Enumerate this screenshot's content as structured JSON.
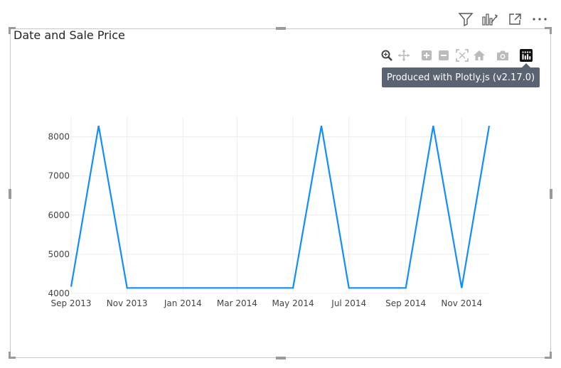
{
  "visual": {
    "header_icons": [
      "filter-icon",
      "drill-icon",
      "focus-mode-icon",
      "more-options-icon"
    ]
  },
  "modebar": {
    "buttons": [
      "zoom-icon",
      "pan-icon",
      "zoom-in-icon",
      "zoom-out-icon",
      "autoscale-icon",
      "reset-axes-icon",
      "camera-icon",
      "plotly-logo-icon"
    ],
    "tooltip": "Produced with Plotly.js (v2.17.0)"
  },
  "chart_data": {
    "type": "line",
    "title": "Date and Sale Price",
    "xlabel": "",
    "ylabel": "",
    "x": [
      "2013-09-01",
      "2013-10-01",
      "2013-11-01",
      "2013-12-01",
      "2014-01-01",
      "2014-02-01",
      "2014-03-01",
      "2014-04-01",
      "2014-05-01",
      "2014-06-01",
      "2014-07-01",
      "2014-08-01",
      "2014-09-01",
      "2014-10-01",
      "2014-11-01",
      "2014-12-01"
    ],
    "series": [
      {
        "values": [
          4170,
          8280,
          4140,
          4140,
          4140,
          4140,
          4140,
          4140,
          4140,
          8280,
          4140,
          4140,
          4140,
          8280,
          4140,
          8280
        ],
        "color": "#118dff"
      }
    ],
    "x_tick_labels": [
      "Sep 2013",
      "Nov 2013",
      "Jan 2014",
      "Mar 2014",
      "May 2014",
      "Jul 2014",
      "Sep 2014",
      "Nov 2014"
    ],
    "x_tick_dates": [
      "2013-09-01",
      "2013-11-01",
      "2014-01-01",
      "2014-03-01",
      "2014-05-01",
      "2014-07-01",
      "2014-09-01",
      "2014-11-01"
    ],
    "y_ticks": [
      4000,
      5000,
      6000,
      7000,
      8000
    ],
    "xlim": [
      "2013-09-01",
      "2014-12-01"
    ],
    "ylim": [
      4000,
      8500
    ],
    "grid": true,
    "line_color": "#118dff"
  }
}
